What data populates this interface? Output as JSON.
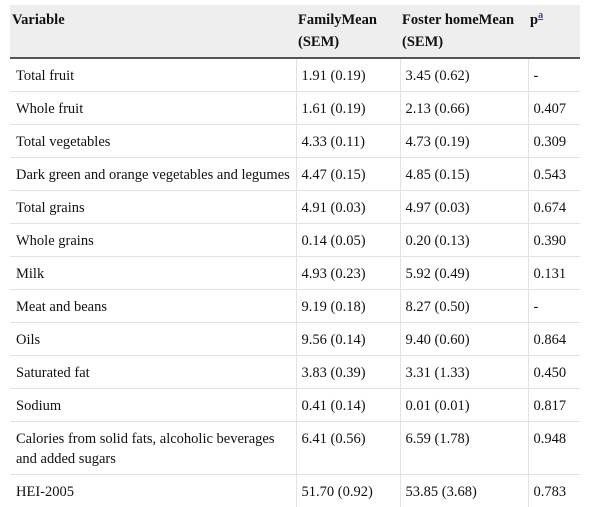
{
  "table": {
    "headers": {
      "variable": "Variable",
      "family": "FamilyMean (SEM)",
      "foster": "Foster homeMean (SEM)",
      "p": "p",
      "p_note": "a"
    },
    "rows": [
      {
        "variable": "Total fruit",
        "family": "1.91 (0.19)",
        "foster": "3.45 (0.62)",
        "p": "-"
      },
      {
        "variable": "Whole fruit",
        "family": "1.61 (0.19)",
        "foster": "2.13 (0.66)",
        "p": "0.407"
      },
      {
        "variable": "Total vegetables",
        "family": "4.33 (0.11)",
        "foster": "4.73 (0.19)",
        "p": "0.309"
      },
      {
        "variable": "Dark green and orange vegetables and legumes",
        "family": "4.47 (0.15)",
        "foster": "4.85 (0.15)",
        "p": "0.543"
      },
      {
        "variable": "Total grains",
        "family": "4.91 (0.03)",
        "foster": "4.97 (0.03)",
        "p": "0.674"
      },
      {
        "variable": "Whole grains",
        "family": "0.14 (0.05)",
        "foster": "0.20 (0.13)",
        "p": "0.390"
      },
      {
        "variable": "Milk",
        "family": "4.93 (0.23)",
        "foster": "5.92 (0.49)",
        "p": "0.131"
      },
      {
        "variable": "Meat and beans",
        "family": "9.19 (0.18)",
        "foster": "8.27 (0.50)",
        "p": "-"
      },
      {
        "variable": "Oils",
        "family": "9.56 (0.14)",
        "foster": "9.40 (0.60)",
        "p": "0.864"
      },
      {
        "variable": "Saturated fat",
        "family": "3.83 (0.39)",
        "foster": "3.31 (1.33)",
        "p": "0.450"
      },
      {
        "variable": "Sodium",
        "family": "0.41 (0.14)",
        "foster": "0.01 (0.01)",
        "p": "0.817"
      },
      {
        "variable": "Calories from solid fats, alcoholic beverages and added sugars",
        "family": "6.41 (0.56)",
        "foster": "6.59 (1.78)",
        "p": "0.948"
      },
      {
        "variable": "HEI-2005",
        "family": "51.70 (0.92)",
        "foster": "53.85 (3.68)",
        "p": "0.783"
      }
    ]
  }
}
